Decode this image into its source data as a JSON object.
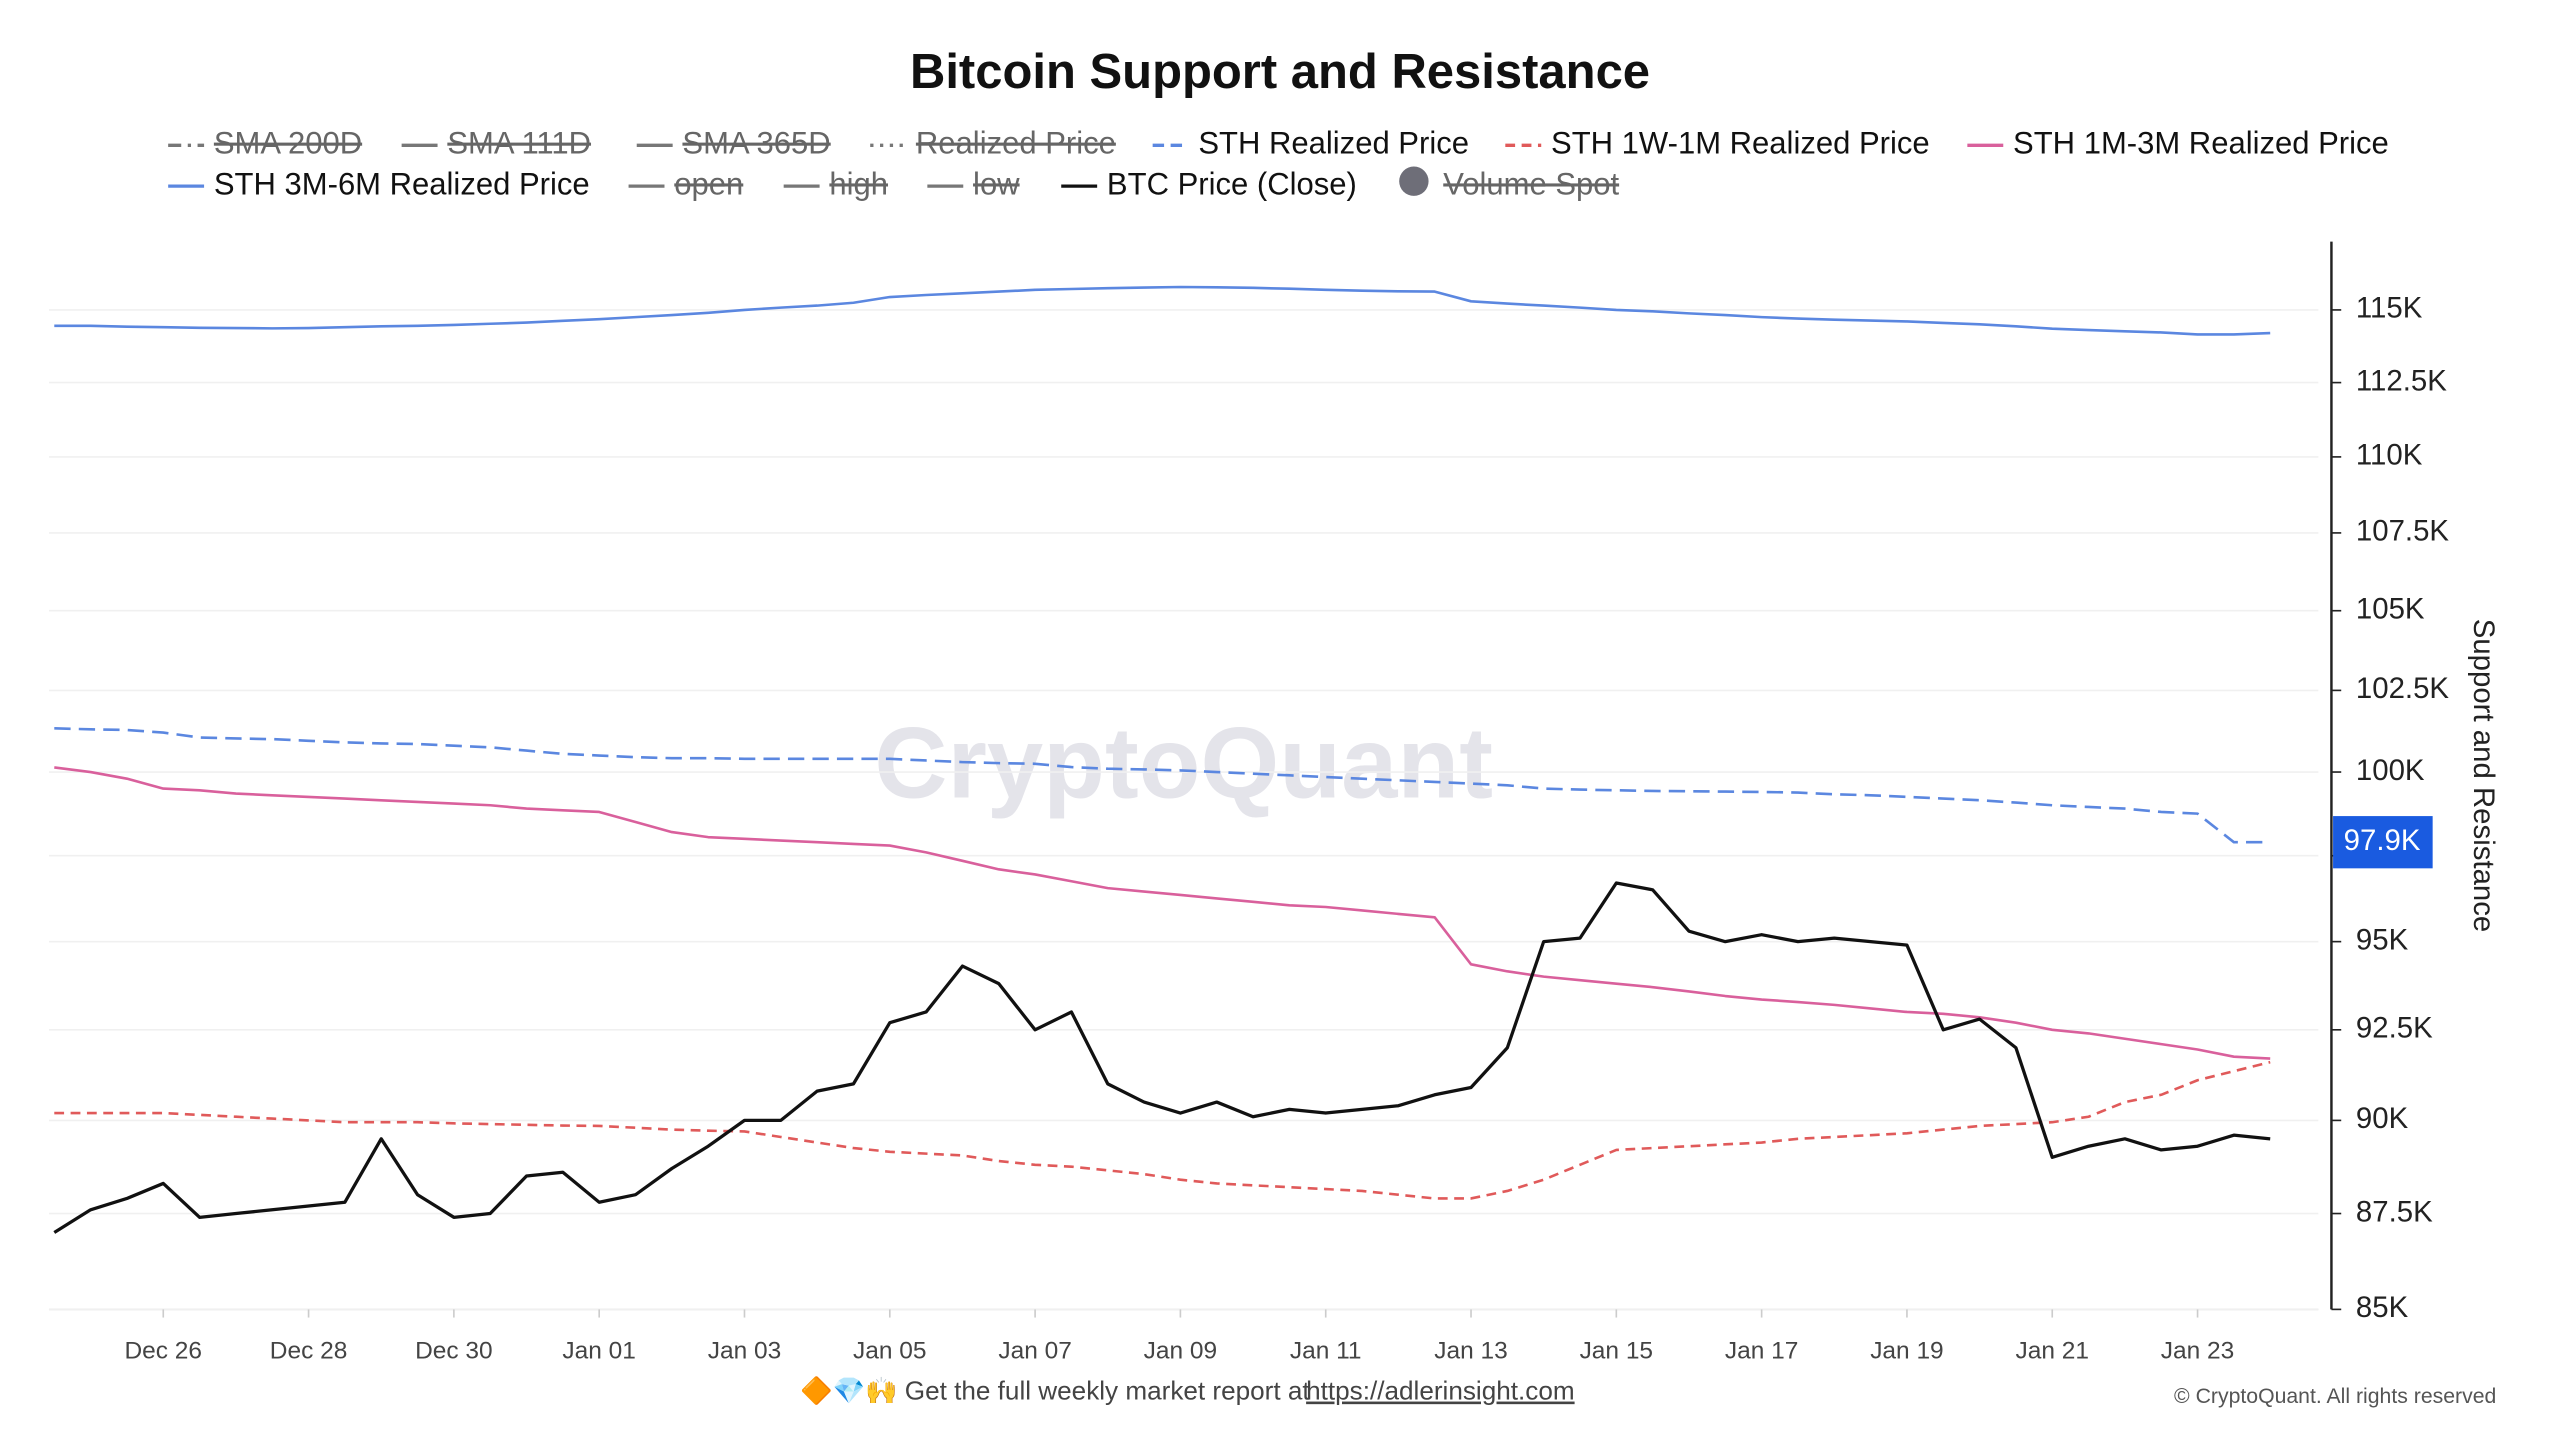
{
  "chart_data": {
    "type": "line",
    "title": "Bitcoin Support and Resistance",
    "y_axis_label": "Support and Resistance",
    "watermark": "CryptoQuant",
    "footer_text": "🔶💎🙌 Get the full weekly market report at",
    "footer_link": "https://adlerinsight.com",
    "copyright": "© CryptoQuant. All rights reserved",
    "log_scale": true,
    "grid": true,
    "categories": [
      null,
      null,
      null,
      "Dec 26",
      null,
      null,
      null,
      "Dec 28",
      null,
      null,
      null,
      "Dec 30",
      null,
      null,
      null,
      "Jan 01",
      null,
      null,
      null,
      "Jan 03",
      null,
      null,
      null,
      "Jan 05",
      null,
      null,
      null,
      "Jan 07",
      null,
      null,
      null,
      "Jan 09",
      null,
      null,
      null,
      "Jan 11",
      null,
      null,
      null,
      "Jan 13",
      null,
      null,
      null,
      "Jan 15",
      null,
      null,
      null,
      "Jan 17",
      null,
      null,
      null,
      "Jan 19",
      null,
      null,
      null,
      "Jan 21",
      null,
      null,
      null,
      "Jan 23",
      null,
      null
    ],
    "ylim": [
      85000,
      117400
    ],
    "yticks": [
      {
        "value": 85000,
        "label": "85K"
      },
      {
        "value": 87500,
        "label": "87.5K"
      },
      {
        "value": 90000,
        "label": "90K"
      },
      {
        "value": 92500,
        "label": "92.5K"
      },
      {
        "value": 95000,
        "label": "95K"
      },
      {
        "value": 97500,
        "label": "97.5K"
      },
      {
        "value": 100000,
        "label": "100K"
      },
      {
        "value": 102500,
        "label": "102.5K"
      },
      {
        "value": 105000,
        "label": "105K"
      },
      {
        "value": 107500,
        "label": "107.5K"
      },
      {
        "value": 110000,
        "label": "110K"
      },
      {
        "value": 112500,
        "label": "112.5K"
      },
      {
        "value": 115000,
        "label": "115K"
      }
    ],
    "price_marker": {
      "value": 97900,
      "label": "97.9K",
      "color": "#1a5be0"
    },
    "series": [
      {
        "name": "SMA 200D",
        "color": "#777777",
        "style": "dashdot",
        "visible": false
      },
      {
        "name": "SMA 111D",
        "color": "#777777",
        "style": "solid",
        "visible": false
      },
      {
        "name": "SMA 365D",
        "color": "#777777",
        "style": "solid",
        "visible": false
      },
      {
        "name": "Realized Price",
        "color": "#777777",
        "style": "dotted",
        "visible": false
      },
      {
        "name": "STH Realized Price",
        "color": "#5b87e0",
        "style": "dashed",
        "visible": true,
        "values": [
          101330,
          101300,
          101280,
          101200,
          101050,
          101020,
          101000,
          100950,
          100900,
          100870,
          100850,
          100800,
          100750,
          100650,
          100550,
          100500,
          100450,
          100420,
          100420,
          100400,
          100400,
          100400,
          100400,
          100400,
          100350,
          100300,
          100270,
          100250,
          100150,
          100100,
          100080,
          100050,
          100000,
          99950,
          99900,
          99850,
          99800,
          99750,
          99700,
          99650,
          99600,
          99500,
          99470,
          99450,
          99430,
          99420,
          99410,
          99400,
          99380,
          99330,
          99300,
          99250,
          99200,
          99150,
          99080,
          99000,
          98950,
          98900,
          98800,
          98750,
          97900,
          97900
        ]
      },
      {
        "name": "STH 1W-1M Realized Price",
        "color": "#e05a5a",
        "style": "dashed-short",
        "visible": true,
        "values": [
          90200,
          90200,
          90200,
          90200,
          90150,
          90100,
          90050,
          90000,
          89950,
          89950,
          89950,
          89920,
          89900,
          89880,
          89860,
          89850,
          89800,
          89750,
          89720,
          89700,
          89550,
          89400,
          89250,
          89150,
          89100,
          89050,
          88900,
          88800,
          88750,
          88650,
          88550,
          88400,
          88300,
          88250,
          88200,
          88150,
          88100,
          88000,
          87900,
          87900,
          88100,
          88400,
          88800,
          89200,
          89250,
          89300,
          89350,
          89400,
          89500,
          89550,
          89600,
          89650,
          89750,
          89850,
          89900,
          89950,
          90100,
          90500,
          90700,
          91100,
          91350,
          91600
        ]
      },
      {
        "name": "STH 1M-3M Realized Price",
        "color": "#d9609c",
        "style": "solid",
        "visible": true,
        "values": [
          100140,
          100000,
          99800,
          99500,
          99450,
          99350,
          99300,
          99250,
          99200,
          99150,
          99100,
          99050,
          99000,
          98900,
          98850,
          98800,
          98500,
          98200,
          98050,
          98000,
          97950,
          97900,
          97850,
          97800,
          97600,
          97350,
          97100,
          96950,
          96750,
          96550,
          96450,
          96350,
          96250,
          96150,
          96050,
          96000,
          95900,
          95800,
          95700,
          94350,
          94150,
          94000,
          93900,
          93800,
          93700,
          93580,
          93450,
          93350,
          93280,
          93200,
          93100,
          93000,
          92950,
          92850,
          92700,
          92500,
          92400,
          92250,
          92100,
          91950,
          91750,
          91700
        ]
      },
      {
        "name": "STH 3M-6M Realized Price",
        "color": "#5b87e0",
        "style": "solid",
        "visible": true,
        "values": [
          114450,
          114450,
          114420,
          114400,
          114380,
          114370,
          114360,
          114370,
          114400,
          114430,
          114450,
          114480,
          114520,
          114560,
          114620,
          114680,
          114750,
          114820,
          114900,
          115000,
          115080,
          115150,
          115250,
          115450,
          115520,
          115580,
          115640,
          115700,
          115730,
          115760,
          115780,
          115800,
          115790,
          115770,
          115740,
          115700,
          115670,
          115650,
          115640,
          115300,
          115220,
          115150,
          115080,
          115000,
          114950,
          114880,
          114820,
          114750,
          114700,
          114660,
          114630,
          114600,
          114550,
          114500,
          114430,
          114350,
          114300,
          114260,
          114220,
          114150,
          114150,
          114200
        ]
      },
      {
        "name": "open",
        "color": "#777777",
        "style": "solid",
        "visible": false
      },
      {
        "name": "high",
        "color": "#777777",
        "style": "solid",
        "visible": false
      },
      {
        "name": "low",
        "color": "#777777",
        "style": "solid",
        "visible": false
      },
      {
        "name": "BTC Price (Close)",
        "color": "#111111",
        "style": "solid",
        "visible": true,
        "values": [
          87000,
          87600,
          87900,
          88300,
          87400,
          87500,
          87600,
          87700,
          87800,
          89500,
          88000,
          87400,
          87500,
          88500,
          88600,
          87800,
          88000,
          88700,
          89300,
          90000,
          90000,
          90800,
          91000,
          92700,
          93000,
          94300,
          93800,
          92500,
          93000,
          91000,
          90500,
          90200,
          90500,
          90100,
          90300,
          90200,
          90300,
          90400,
          90700,
          90900,
          92000,
          95000,
          95100,
          96700,
          96500,
          95300,
          95000,
          95200,
          95000,
          95100,
          95000,
          94900,
          92500,
          92800,
          92000,
          89000,
          89300,
          89500,
          89200,
          89300,
          89600,
          89500
        ]
      },
      {
        "name": "Volume Spot",
        "color": "#6e6e78",
        "style": "circle",
        "visible": false
      }
    ]
  }
}
